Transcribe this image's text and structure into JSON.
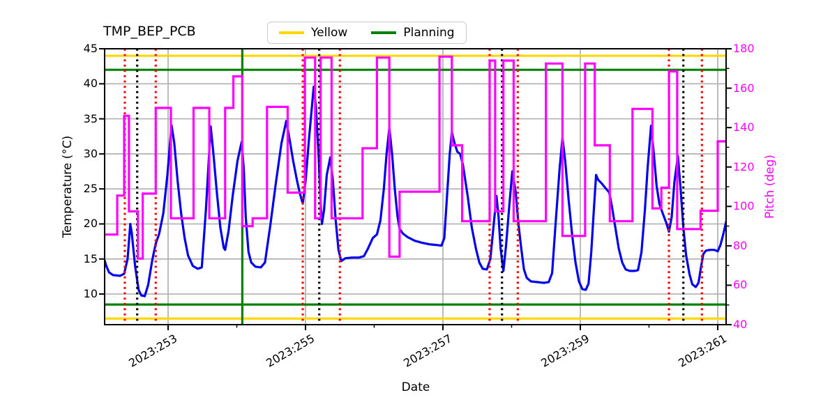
{
  "title": "TMP_BEP_PCB",
  "legend": [
    {
      "label": "Yellow",
      "color": "#FFD700"
    },
    {
      "label": "Planning",
      "color": "#008000"
    }
  ],
  "chart_data": {
    "type": "line",
    "title": "TMP_BEP_PCB",
    "xlabel": "Date",
    "grid": true,
    "x_axis": {
      "range": [
        252.076,
        261.122
      ],
      "major_ticks": [
        253,
        255,
        257,
        259,
        261
      ],
      "major_tick_labels": [
        "2023:253",
        "2023:255",
        "2023:257",
        "2023:259",
        "2023:261"
      ],
      "minor_ticks": [
        254,
        256,
        258,
        260
      ]
    },
    "y_left": {
      "label": "Temperature (°C)",
      "range": [
        5.63,
        45
      ],
      "ticks": [
        10,
        15,
        20,
        25,
        30,
        35,
        40,
        45
      ],
      "color": "#000000"
    },
    "y_right": {
      "label": "Pitch (deg)",
      "range": [
        40,
        180
      ],
      "ticks": [
        40,
        60,
        80,
        100,
        120,
        140,
        160,
        180
      ],
      "minor_ticks": [
        50,
        70,
        90,
        110,
        130,
        150,
        170
      ],
      "color": "#FF00FF"
    },
    "hlines": [
      {
        "name": "Yellow",
        "color": "#FFD700",
        "style": "solid",
        "values": [
          44.0,
          6.5
        ]
      },
      {
        "name": "Planning",
        "color": "#008000",
        "style": "solid",
        "values": [
          42.0,
          8.5
        ]
      }
    ],
    "vlines": [
      {
        "name": "red-dotted",
        "color": "#FF0000",
        "style": "dotted",
        "x": [
          252.37,
          252.82,
          254.96,
          255.5,
          257.68,
          258.09,
          260.29,
          260.77
        ]
      },
      {
        "name": "black-dotted",
        "color": "#000000",
        "style": "dotted",
        "x": [
          252.55,
          255.2,
          257.86,
          260.5
        ]
      },
      {
        "name": "green-solid",
        "color": "#008000",
        "style": "solid",
        "x": [
          254.08
        ]
      }
    ],
    "series": [
      {
        "name": "Temperature",
        "axis": "left",
        "color": "#0000EE",
        "width": 3.2,
        "mode": "linear",
        "points": [
          [
            252.076,
            14.8
          ],
          [
            252.1,
            14.0
          ],
          [
            252.14,
            13.1
          ],
          [
            252.2,
            12.7
          ],
          [
            252.3,
            12.6
          ],
          [
            252.36,
            12.9
          ],
          [
            252.41,
            15.0
          ],
          [
            252.45,
            20.0
          ],
          [
            252.47,
            18.8
          ],
          [
            252.52,
            14.0
          ],
          [
            252.57,
            10.6
          ],
          [
            252.61,
            9.8
          ],
          [
            252.66,
            9.7
          ],
          [
            252.71,
            11.3
          ],
          [
            252.77,
            14.9
          ],
          [
            252.82,
            17.2
          ],
          [
            252.87,
            18.6
          ],
          [
            252.93,
            21.5
          ],
          [
            252.99,
            27.0
          ],
          [
            253.05,
            34.1
          ],
          [
            253.09,
            31.5
          ],
          [
            253.14,
            26.0
          ],
          [
            253.19,
            21.5
          ],
          [
            253.24,
            18.0
          ],
          [
            253.29,
            15.5
          ],
          [
            253.36,
            14.0
          ],
          [
            253.43,
            13.6
          ],
          [
            253.49,
            13.8
          ],
          [
            253.55,
            22.0
          ],
          [
            253.62,
            33.9
          ],
          [
            253.66,
            30.0
          ],
          [
            253.71,
            24.5
          ],
          [
            253.76,
            19.5
          ],
          [
            253.81,
            16.6
          ],
          [
            253.83,
            16.3
          ],
          [
            253.88,
            19.0
          ],
          [
            253.94,
            24.0
          ],
          [
            254.01,
            29.0
          ],
          [
            254.07,
            31.7
          ],
          [
            254.1,
            28.0
          ],
          [
            254.13,
            21.0
          ],
          [
            254.17,
            16.0
          ],
          [
            254.21,
            14.5
          ],
          [
            254.27,
            13.9
          ],
          [
            254.35,
            13.8
          ],
          [
            254.41,
            14.5
          ],
          [
            254.49,
            20.0
          ],
          [
            254.57,
            26.0
          ],
          [
            254.65,
            31.5
          ],
          [
            254.72,
            34.7
          ],
          [
            254.77,
            32.0
          ],
          [
            254.82,
            29.0
          ],
          [
            254.88,
            26.0
          ],
          [
            254.92,
            24.3
          ],
          [
            254.96,
            22.9
          ],
          [
            255.0,
            26.0
          ],
          [
            255.05,
            32.0
          ],
          [
            255.12,
            39.6
          ],
          [
            255.15,
            37.0
          ],
          [
            255.19,
            30.0
          ],
          [
            255.22,
            23.0
          ],
          [
            255.24,
            20.0
          ],
          [
            255.27,
            22.0
          ],
          [
            255.31,
            27.0
          ],
          [
            255.36,
            29.5
          ],
          [
            255.4,
            26.0
          ],
          [
            255.44,
            20.5
          ],
          [
            255.48,
            16.3
          ],
          [
            255.52,
            14.7
          ],
          [
            255.58,
            15.1
          ],
          [
            255.68,
            15.2
          ],
          [
            255.78,
            15.2
          ],
          [
            255.85,
            15.4
          ],
          [
            255.91,
            16.5
          ],
          [
            255.98,
            18.0
          ],
          [
            256.04,
            18.5
          ],
          [
            256.09,
            20.5
          ],
          [
            256.14,
            25.0
          ],
          [
            256.18,
            30.0
          ],
          [
            256.22,
            33.7
          ],
          [
            256.26,
            30.0
          ],
          [
            256.3,
            25.0
          ],
          [
            256.34,
            21.0
          ],
          [
            256.37,
            19.3
          ],
          [
            256.42,
            18.6
          ],
          [
            256.49,
            18.1
          ],
          [
            256.59,
            17.6
          ],
          [
            256.7,
            17.3
          ],
          [
            256.8,
            17.1
          ],
          [
            256.9,
            17.0
          ],
          [
            256.98,
            16.9
          ],
          [
            257.02,
            18.0
          ],
          [
            257.06,
            24.0
          ],
          [
            257.1,
            30.0
          ],
          [
            257.13,
            33.1
          ],
          [
            257.17,
            31.5
          ],
          [
            257.21,
            30.3
          ],
          [
            257.25,
            30.0
          ],
          [
            257.29,
            28.5
          ],
          [
            257.36,
            24.0
          ],
          [
            257.42,
            19.5
          ],
          [
            257.48,
            16.5
          ],
          [
            257.53,
            14.5
          ],
          [
            257.58,
            13.6
          ],
          [
            257.64,
            13.5
          ],
          [
            257.69,
            15.0
          ],
          [
            257.74,
            20.0
          ],
          [
            257.78,
            24.0
          ],
          [
            257.81,
            21.0
          ],
          [
            257.84,
            16.5
          ],
          [
            257.88,
            13.3
          ],
          [
            257.92,
            17.0
          ],
          [
            257.97,
            23.0
          ],
          [
            258.01,
            27.5
          ],
          [
            258.06,
            24.5
          ],
          [
            258.1,
            20.0
          ],
          [
            258.14,
            16.5
          ],
          [
            258.18,
            13.5
          ],
          [
            258.22,
            12.3
          ],
          [
            258.28,
            11.8
          ],
          [
            258.37,
            11.7
          ],
          [
            258.47,
            11.6
          ],
          [
            258.54,
            11.7
          ],
          [
            258.59,
            13.0
          ],
          [
            258.64,
            20.0
          ],
          [
            258.7,
            28.0
          ],
          [
            258.74,
            32.3
          ],
          [
            258.78,
            29.0
          ],
          [
            258.83,
            23.5
          ],
          [
            258.88,
            18.5
          ],
          [
            258.93,
            14.5
          ],
          [
            258.98,
            11.8
          ],
          [
            259.03,
            10.7
          ],
          [
            259.08,
            10.6
          ],
          [
            259.12,
            11.5
          ],
          [
            259.16,
            16.0
          ],
          [
            259.2,
            22.5
          ],
          [
            259.23,
            27.0
          ],
          [
            259.26,
            26.3
          ],
          [
            259.31,
            25.8
          ],
          [
            259.36,
            25.2
          ],
          [
            259.42,
            24.5
          ],
          [
            259.46,
            22.5
          ],
          [
            259.51,
            19.5
          ],
          [
            259.56,
            16.5
          ],
          [
            259.61,
            14.5
          ],
          [
            259.66,
            13.5
          ],
          [
            259.72,
            13.3
          ],
          [
            259.79,
            13.3
          ],
          [
            259.84,
            13.4
          ],
          [
            259.89,
            16.0
          ],
          [
            259.94,
            22.0
          ],
          [
            259.98,
            28.0
          ],
          [
            260.03,
            34.0
          ],
          [
            260.07,
            30.0
          ],
          [
            260.11,
            25.5
          ],
          [
            260.15,
            22.9
          ],
          [
            260.2,
            21.5
          ],
          [
            260.25,
            20.2
          ],
          [
            260.29,
            18.9
          ],
          [
            260.33,
            21.0
          ],
          [
            260.37,
            26.0
          ],
          [
            260.42,
            29.7
          ],
          [
            260.46,
            25.0
          ],
          [
            260.5,
            19.5
          ],
          [
            260.54,
            15.5
          ],
          [
            260.59,
            12.8
          ],
          [
            260.63,
            11.4
          ],
          [
            260.68,
            11.0
          ],
          [
            260.72,
            11.6
          ],
          [
            260.76,
            14.0
          ],
          [
            260.79,
            15.7
          ],
          [
            260.83,
            16.2
          ],
          [
            260.89,
            16.3
          ],
          [
            260.95,
            16.3
          ],
          [
            261.0,
            16.1
          ],
          [
            261.04,
            17.0
          ],
          [
            261.08,
            18.5
          ],
          [
            261.122,
            20.3
          ]
        ]
      },
      {
        "name": "Pitch",
        "axis": "right",
        "color": "#FF00FF",
        "width": 3.2,
        "mode": "step-after",
        "points": [
          [
            252.076,
            85.7
          ],
          [
            252.26,
            105.5
          ],
          [
            252.36,
            146.0
          ],
          [
            252.43,
            97.5
          ],
          [
            252.56,
            73.5
          ],
          [
            252.63,
            106.5
          ],
          [
            252.82,
            150.0
          ],
          [
            253.04,
            94.0
          ],
          [
            253.37,
            150.0
          ],
          [
            253.6,
            94.0
          ],
          [
            253.83,
            150.0
          ],
          [
            253.95,
            166.0
          ],
          [
            254.08,
            90.0
          ],
          [
            254.23,
            94.0
          ],
          [
            254.44,
            150.5
          ],
          [
            254.74,
            107.0
          ],
          [
            254.99,
            175.5
          ],
          [
            255.14,
            94.0
          ],
          [
            255.22,
            175.5
          ],
          [
            255.38,
            94.0
          ],
          [
            255.83,
            129.5
          ],
          [
            256.04,
            175.5
          ],
          [
            256.22,
            74.5
          ],
          [
            256.37,
            107.5
          ],
          [
            256.95,
            176.0
          ],
          [
            257.13,
            131.0
          ],
          [
            257.28,
            92.5
          ],
          [
            257.68,
            174.0
          ],
          [
            257.76,
            97.5
          ],
          [
            257.88,
            174.0
          ],
          [
            258.03,
            92.5
          ],
          [
            258.5,
            172.5
          ],
          [
            258.74,
            85.0
          ],
          [
            259.07,
            172.5
          ],
          [
            259.21,
            131.0
          ],
          [
            259.43,
            92.5
          ],
          [
            259.76,
            149.5
          ],
          [
            260.05,
            99.0
          ],
          [
            260.18,
            109.5
          ],
          [
            260.29,
            168.5
          ],
          [
            260.41,
            88.5
          ],
          [
            260.75,
            97.8
          ],
          [
            261.0,
            133.0
          ],
          [
            261.122,
            133.0
          ]
        ]
      }
    ]
  }
}
